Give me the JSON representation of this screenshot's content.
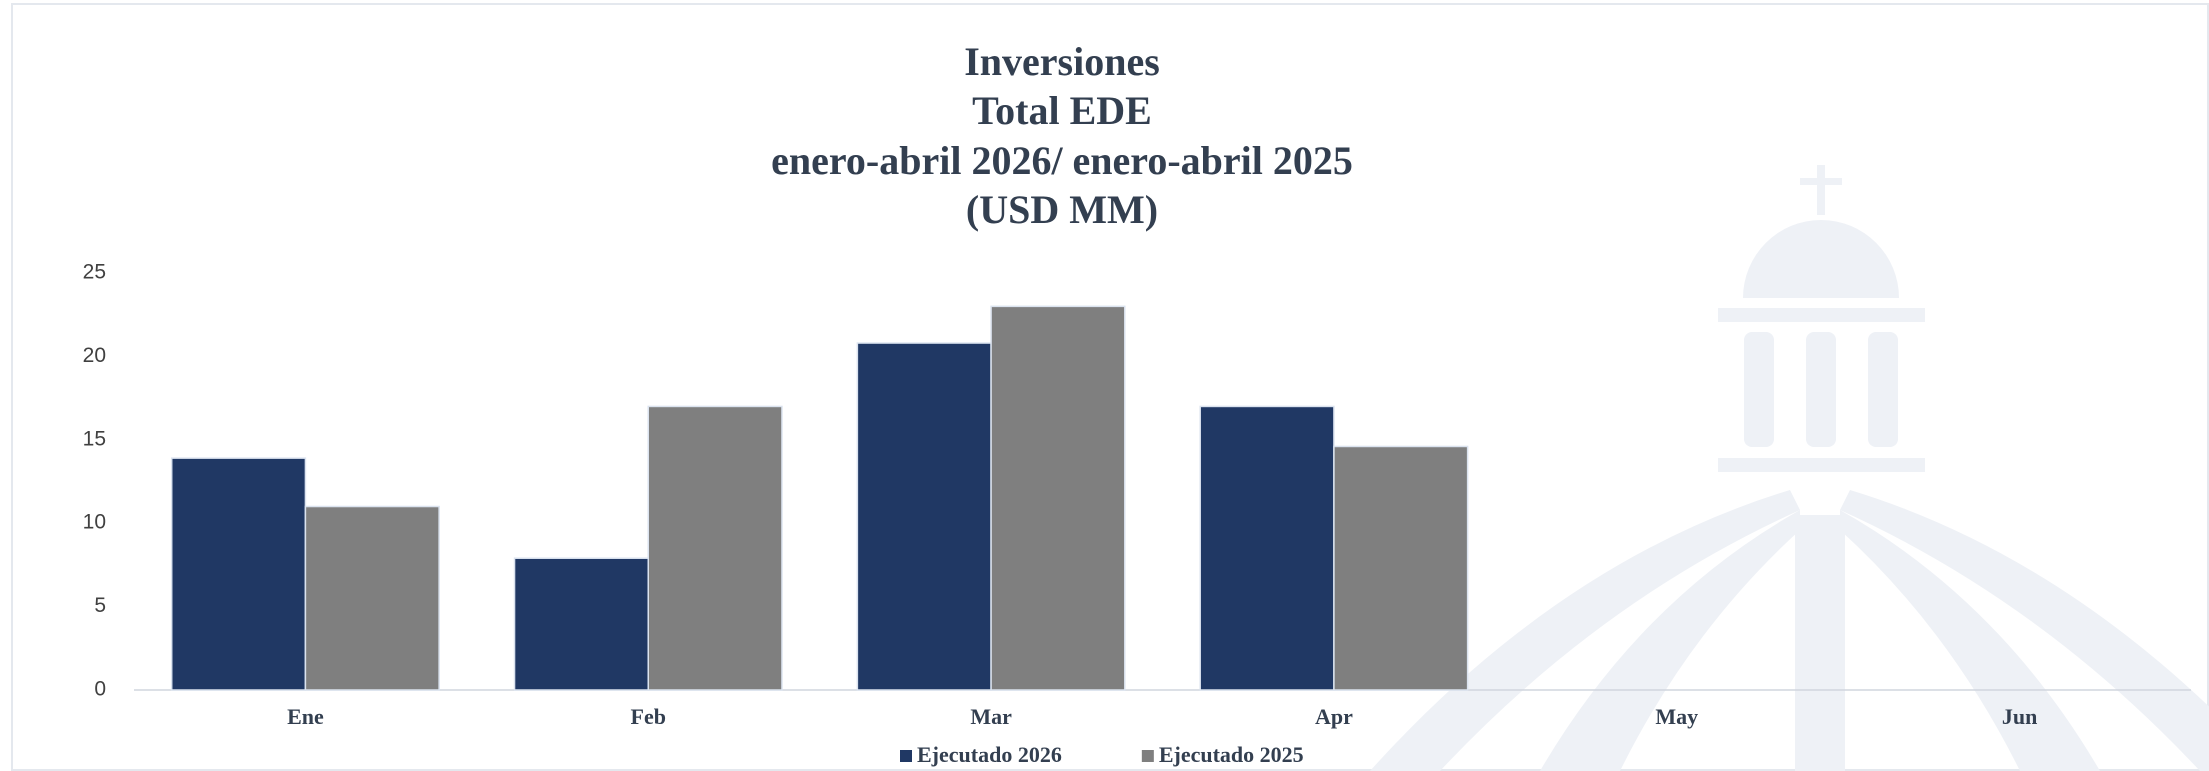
{
  "chart_data": {
    "type": "bar",
    "title": [
      "Inversiones",
      "Total EDE",
      "enero-abril 2026/ enero-abril 2025",
      "(USD MM)"
    ],
    "categories": [
      "Ene",
      "Feb",
      "Mar",
      "Apr",
      "May",
      "Jun"
    ],
    "series": [
      {
        "name": "Ejecutado 2026",
        "color": "#203864",
        "values": [
          13.9,
          7.9,
          20.8,
          17,
          null,
          null
        ]
      },
      {
        "name": "Ejecutado 2025",
        "color": "#7f7f7f",
        "values": [
          11,
          17,
          23,
          14.6,
          null,
          null
        ]
      }
    ],
    "ylim": [
      0,
      25
    ],
    "yticks": [
      0,
      5,
      10,
      15,
      20,
      25
    ],
    "grid": false,
    "legend": "bottom"
  }
}
